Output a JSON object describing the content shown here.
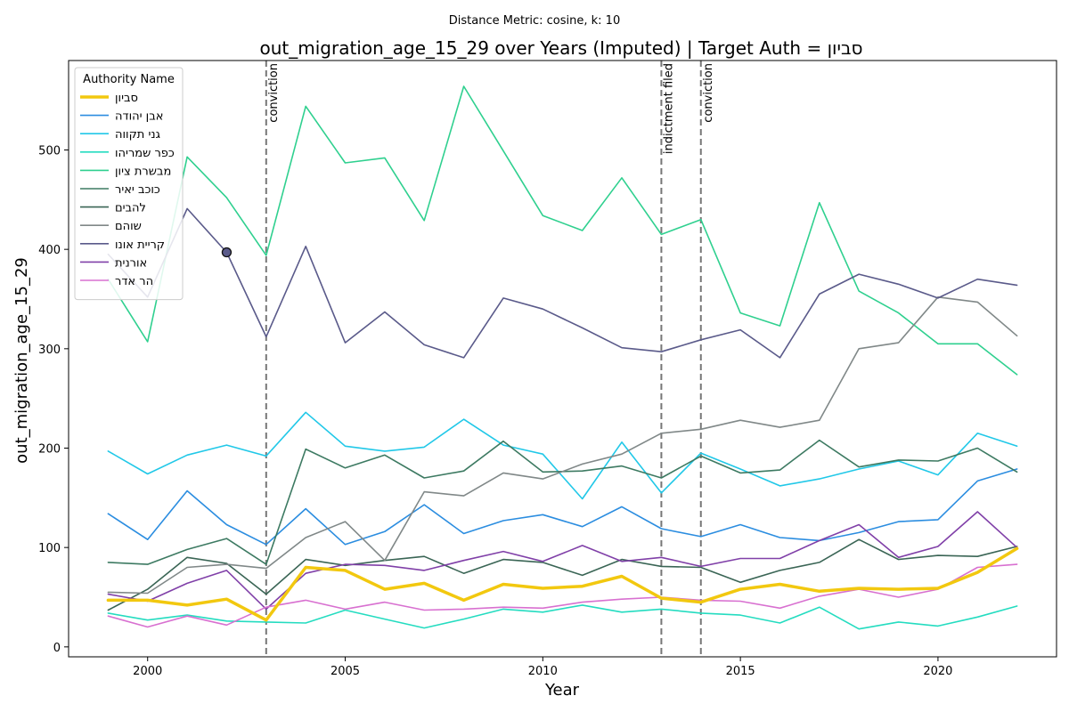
{
  "chart_data": {
    "type": "line",
    "subtitle": "Distance Metric: cosine, k: 10",
    "title": "out_migration_age_15_29 over Years (Imputed) | Target Auth = סביון",
    "xlabel": "Year",
    "ylabel": "out_migration_age_15_29",
    "xlim": [
      1998.0,
      2023.0
    ],
    "ylim": [
      -10,
      590
    ],
    "xticks": [
      2000,
      2005,
      2010,
      2015,
      2020
    ],
    "yticks": [
      0,
      100,
      200,
      300,
      400,
      500
    ],
    "grid": false,
    "legend": {
      "title": "Authority Name",
      "placement": "top-left"
    },
    "x": [
      1999,
      2000,
      2001,
      2002,
      2003,
      2004,
      2005,
      2006,
      2007,
      2008,
      2009,
      2010,
      2011,
      2012,
      2013,
      2014,
      2015,
      2016,
      2017,
      2018,
      2019,
      2020,
      2021,
      2022
    ],
    "events": [
      {
        "x": 2003,
        "label": "conviction"
      },
      {
        "x": 2013,
        "label": "indictment filed"
      },
      {
        "x": 2014,
        "label": "conviction"
      }
    ],
    "marker": {
      "series": "קריית אונו",
      "x": 2002,
      "y": 397,
      "color": "#5a5a8a"
    },
    "series": [
      {
        "name": "סביון",
        "color": "#f2c80f",
        "width": 3.5,
        "values": [
          47,
          47,
          42,
          48,
          27,
          80,
          77,
          58,
          64,
          47,
          63,
          59,
          61,
          71,
          49,
          45,
          58,
          63,
          56,
          59,
          58,
          59,
          75,
          99
        ]
      },
      {
        "name": "אבן יהודה",
        "color": "#2b8de0",
        "width": 1.6,
        "values": [
          134,
          108,
          157,
          123,
          103,
          139,
          103,
          116,
          143,
          114,
          127,
          133,
          121,
          141,
          119,
          111,
          123,
          110,
          107,
          115,
          126,
          128,
          167,
          179
        ]
      },
      {
        "name": "גני תקווה",
        "color": "#21c8e8",
        "width": 1.6,
        "values": [
          197,
          174,
          193,
          203,
          192,
          236,
          202,
          197,
          201,
          229,
          203,
          194,
          149,
          206,
          155,
          195,
          179,
          162,
          169,
          179,
          187,
          173,
          215,
          202
        ]
      },
      {
        "name": "כפר שמריהו",
        "color": "#24dcc0",
        "width": 1.6,
        "values": [
          34,
          27,
          32,
          26,
          25,
          24,
          37,
          28,
          19,
          28,
          38,
          35,
          42,
          35,
          38,
          34,
          32,
          24,
          40,
          18,
          25,
          21,
          30,
          41
        ]
      },
      {
        "name": "מבשרת ציון",
        "color": "#2fd08f",
        "width": 1.6,
        "values": [
          370,
          307,
          493,
          452,
          394,
          544,
          487,
          492,
          429,
          564,
          499,
          434,
          419,
          472,
          415,
          430,
          336,
          323,
          447,
          358,
          336,
          305,
          305,
          274
        ]
      },
      {
        "name": "כוכב יאיר",
        "color": "#3d7a62",
        "width": 1.6,
        "values": [
          85,
          83,
          98,
          109,
          83,
          199,
          180,
          193,
          170,
          177,
          207,
          176,
          177,
          182,
          170,
          192,
          175,
          178,
          208,
          181,
          188,
          187,
          200,
          176
        ]
      },
      {
        "name": "להבים",
        "color": "#3a6555",
        "width": 1.6,
        "values": [
          37,
          58,
          90,
          84,
          53,
          88,
          82,
          87,
          91,
          74,
          88,
          85,
          72,
          88,
          81,
          80,
          65,
          77,
          85,
          108,
          88,
          92,
          91,
          101
        ]
      },
      {
        "name": "שוהם",
        "color": "#808888",
        "width": 1.6,
        "values": [
          55,
          54,
          80,
          83,
          79,
          110,
          126,
          87,
          156,
          152,
          175,
          169,
          184,
          194,
          215,
          219,
          228,
          221,
          228,
          300,
          306,
          352,
          347,
          313
        ]
      },
      {
        "name": "קריית אונו",
        "color": "#5a5a8a",
        "width": 1.6,
        "values": [
          395,
          352,
          441,
          397,
          312,
          403,
          306,
          337,
          304,
          291,
          351,
          340,
          321,
          301,
          297,
          309,
          319,
          291,
          355,
          375,
          365,
          351,
          370,
          364
        ]
      },
      {
        "name": "אורנית",
        "color": "#8040a8",
        "width": 1.6,
        "values": [
          53,
          46,
          64,
          77,
          38,
          74,
          83,
          82,
          77,
          87,
          96,
          86,
          102,
          86,
          90,
          81,
          89,
          89,
          107,
          123,
          90,
          101,
          136,
          100
        ]
      },
      {
        "name": "הר אדר",
        "color": "#d870d0",
        "width": 1.6,
        "values": [
          31,
          20,
          31,
          22,
          40,
          47,
          38,
          45,
          37,
          38,
          40,
          39,
          45,
          48,
          50,
          47,
          46,
          39,
          51,
          58,
          50,
          58,
          80,
          83
        ]
      }
    ]
  }
}
